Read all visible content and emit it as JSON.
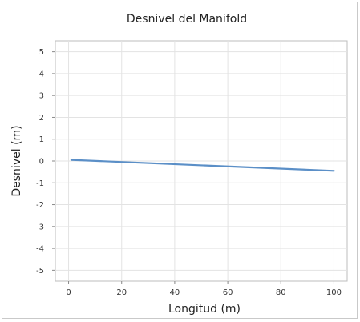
{
  "chart_data": {
    "type": "line",
    "title": "Desnivel del Manifold",
    "xlabel": "Longitud (m)",
    "ylabel": "Desnivel (m)",
    "xlim": [
      -5,
      105
    ],
    "ylim": [
      -5.5,
      5.5
    ],
    "x_ticks": [
      0,
      20,
      40,
      60,
      80,
      100
    ],
    "y_ticks": [
      5,
      4,
      3,
      2,
      1,
      0,
      -1,
      -2,
      -3,
      -4,
      -5
    ],
    "grid": true,
    "legend": "none",
    "series": [
      {
        "color": "#5b8fc7",
        "x": [
          1,
          100
        ],
        "y": [
          0.05,
          -0.45
        ]
      }
    ]
  }
}
